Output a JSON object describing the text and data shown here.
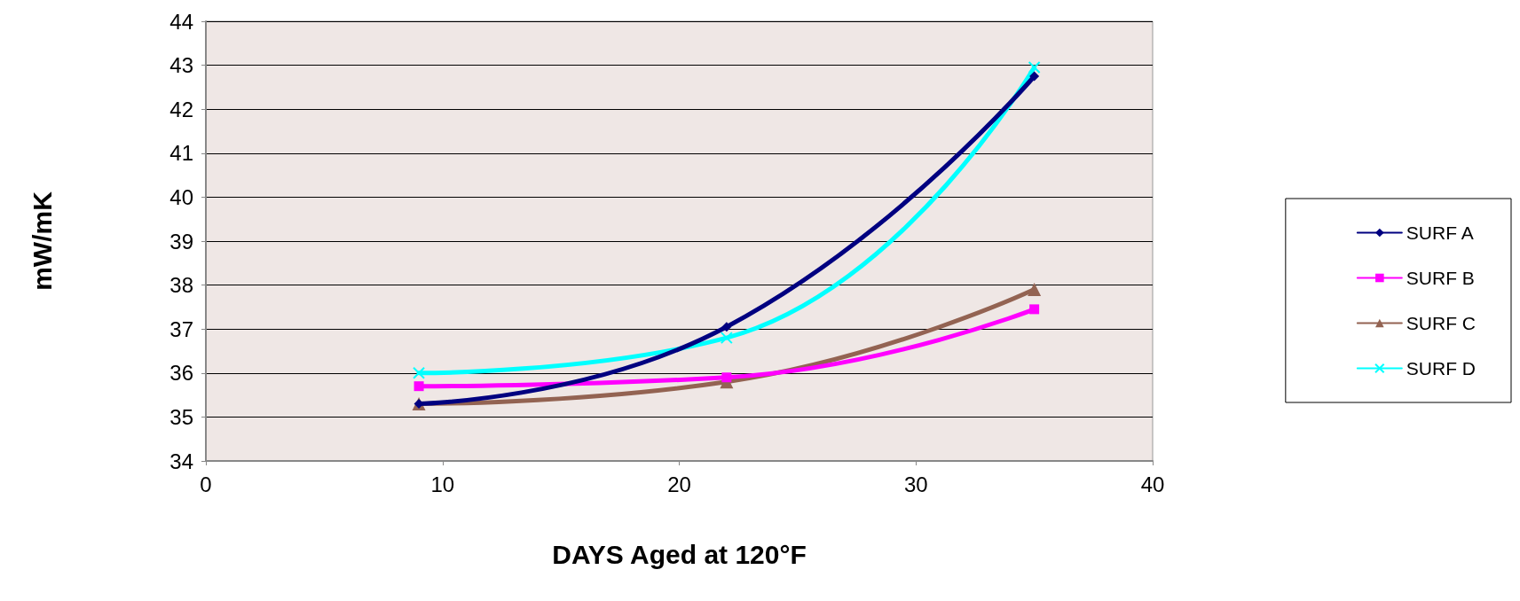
{
  "chart_data": {
    "type": "line",
    "xlabel": "DAYS Aged at 120°F",
    "ylabel": "mW/mK",
    "x": [
      9,
      22,
      35
    ],
    "xlim": [
      0,
      40
    ],
    "xticks": [
      0,
      10,
      20,
      30,
      40
    ],
    "ylim": [
      34,
      44
    ],
    "yticks": [
      34,
      35,
      36,
      37,
      38,
      39,
      40,
      41,
      42,
      43,
      44
    ],
    "grid": "y",
    "legend": "right",
    "line_style": "solid",
    "series": [
      {
        "name": "SURF A",
        "color": "#000080",
        "marker": "diamond",
        "values": [
          35.3,
          37.05,
          42.75
        ]
      },
      {
        "name": "SURF B",
        "color": "#ff00ff",
        "marker": "square",
        "values": [
          35.7,
          35.9,
          37.45
        ]
      },
      {
        "name": "SURF C",
        "color": "#936352",
        "marker": "triangle",
        "values": [
          35.3,
          35.8,
          37.9
        ]
      },
      {
        "name": "SURF D",
        "color": "#00ffff",
        "marker": "cross",
        "values": [
          36.0,
          36.8,
          42.95
        ]
      }
    ]
  }
}
